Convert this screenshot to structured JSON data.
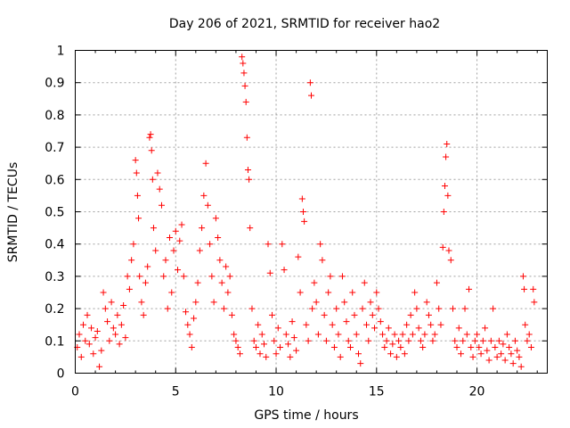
{
  "chart_data": {
    "type": "scatter",
    "title": "Day 206 of 2021, SRMTID for receiver hao2",
    "xlabel": "GPS time / hours",
    "ylabel": "SRMTID / TECUs",
    "xlim": [
      0,
      23.5
    ],
    "ylim": [
      0,
      1
    ],
    "xticks": [
      0,
      5,
      10,
      15,
      20
    ],
    "xtick_labels": [
      "0",
      "5",
      "10",
      "15",
      "20"
    ],
    "yticks": [
      0,
      0.1,
      0.2,
      0.3,
      0.4,
      0.5,
      0.6,
      0.7,
      0.8,
      0.9,
      1
    ],
    "ytick_labels": [
      "0",
      "0.1",
      "0.2",
      "0.3",
      "0.4",
      "0.5",
      "0.6",
      "0.7",
      "0.8",
      "0.9",
      "1"
    ],
    "grid": true,
    "marker": "+",
    "color": "#ff0000",
    "series": [
      {
        "name": "hao2",
        "points": [
          [
            0.1,
            0.08
          ],
          [
            0.2,
            0.12
          ],
          [
            0.3,
            0.05
          ],
          [
            0.4,
            0.15
          ],
          [
            0.5,
            0.1
          ],
          [
            0.6,
            0.18
          ],
          [
            0.7,
            0.09
          ],
          [
            0.8,
            0.14
          ],
          [
            0.9,
            0.06
          ],
          [
            1.0,
            0.11
          ],
          [
            1.1,
            0.13
          ],
          [
            1.2,
            0.02
          ],
          [
            1.3,
            0.07
          ],
          [
            1.4,
            0.25
          ],
          [
            1.5,
            0.2
          ],
          [
            1.6,
            0.16
          ],
          [
            1.7,
            0.1
          ],
          [
            1.8,
            0.22
          ],
          [
            1.9,
            0.14
          ],
          [
            2.0,
            0.12
          ],
          [
            2.1,
            0.18
          ],
          [
            2.2,
            0.09
          ],
          [
            2.3,
            0.15
          ],
          [
            2.4,
            0.21
          ],
          [
            2.5,
            0.11
          ],
          [
            2.6,
            0.3
          ],
          [
            2.7,
            0.26
          ],
          [
            2.8,
            0.35
          ],
          [
            2.9,
            0.4
          ],
          [
            3.0,
            0.66
          ],
          [
            3.05,
            0.62
          ],
          [
            3.1,
            0.55
          ],
          [
            3.15,
            0.48
          ],
          [
            3.2,
            0.3
          ],
          [
            3.3,
            0.22
          ],
          [
            3.4,
            0.18
          ],
          [
            3.5,
            0.28
          ],
          [
            3.6,
            0.33
          ],
          [
            3.7,
            0.73
          ],
          [
            3.75,
            0.74
          ],
          [
            3.8,
            0.69
          ],
          [
            3.85,
            0.6
          ],
          [
            3.9,
            0.45
          ],
          [
            4.0,
            0.38
          ],
          [
            4.1,
            0.62
          ],
          [
            4.2,
            0.57
          ],
          [
            4.3,
            0.52
          ],
          [
            4.4,
            0.3
          ],
          [
            4.5,
            0.35
          ],
          [
            4.6,
            0.2
          ],
          [
            4.7,
            0.42
          ],
          [
            4.8,
            0.25
          ],
          [
            4.9,
            0.38
          ],
          [
            5.0,
            0.44
          ],
          [
            5.1,
            0.32
          ],
          [
            5.2,
            0.41
          ],
          [
            5.3,
            0.46
          ],
          [
            5.4,
            0.3
          ],
          [
            5.5,
            0.19
          ],
          [
            5.6,
            0.15
          ],
          [
            5.7,
            0.12
          ],
          [
            5.8,
            0.08
          ],
          [
            5.9,
            0.17
          ],
          [
            6.0,
            0.22
          ],
          [
            6.1,
            0.28
          ],
          [
            6.2,
            0.38
          ],
          [
            6.3,
            0.45
          ],
          [
            6.4,
            0.55
          ],
          [
            6.5,
            0.65
          ],
          [
            6.6,
            0.52
          ],
          [
            6.7,
            0.4
          ],
          [
            6.8,
            0.3
          ],
          [
            6.9,
            0.22
          ],
          [
            7.0,
            0.48
          ],
          [
            7.1,
            0.42
          ],
          [
            7.2,
            0.35
          ],
          [
            7.3,
            0.28
          ],
          [
            7.4,
            0.2
          ],
          [
            7.5,
            0.33
          ],
          [
            7.6,
            0.25
          ],
          [
            7.7,
            0.3
          ],
          [
            7.8,
            0.18
          ],
          [
            7.9,
            0.12
          ],
          [
            8.0,
            0.1
          ],
          [
            8.1,
            0.08
          ],
          [
            8.2,
            0.06
          ],
          [
            8.3,
            0.98
          ],
          [
            8.35,
            0.96
          ],
          [
            8.4,
            0.93
          ],
          [
            8.45,
            0.89
          ],
          [
            8.5,
            0.84
          ],
          [
            8.55,
            0.73
          ],
          [
            8.6,
            0.63
          ],
          [
            8.65,
            0.6
          ],
          [
            8.7,
            0.45
          ],
          [
            8.8,
            0.2
          ],
          [
            8.9,
            0.1
          ],
          [
            9.0,
            0.08
          ],
          [
            9.1,
            0.15
          ],
          [
            9.2,
            0.06
          ],
          [
            9.3,
            0.12
          ],
          [
            9.4,
            0.09
          ],
          [
            9.5,
            0.05
          ],
          [
            9.6,
            0.4
          ],
          [
            9.7,
            0.31
          ],
          [
            9.8,
            0.18
          ],
          [
            9.9,
            0.1
          ],
          [
            10.0,
            0.06
          ],
          [
            10.1,
            0.14
          ],
          [
            10.2,
            0.08
          ],
          [
            10.3,
            0.4
          ],
          [
            10.4,
            0.32
          ],
          [
            10.5,
            0.12
          ],
          [
            10.6,
            0.09
          ],
          [
            10.7,
            0.05
          ],
          [
            10.8,
            0.16
          ],
          [
            10.9,
            0.11
          ],
          [
            11.0,
            0.07
          ],
          [
            11.1,
            0.36
          ],
          [
            11.2,
            0.25
          ],
          [
            11.3,
            0.54
          ],
          [
            11.35,
            0.5
          ],
          [
            11.4,
            0.47
          ],
          [
            11.5,
            0.15
          ],
          [
            11.6,
            0.1
          ],
          [
            11.7,
            0.9
          ],
          [
            11.75,
            0.86
          ],
          [
            11.8,
            0.2
          ],
          [
            11.9,
            0.28
          ],
          [
            12.0,
            0.22
          ],
          [
            12.1,
            0.12
          ],
          [
            12.2,
            0.4
          ],
          [
            12.3,
            0.35
          ],
          [
            12.4,
            0.18
          ],
          [
            12.5,
            0.1
          ],
          [
            12.6,
            0.25
          ],
          [
            12.7,
            0.3
          ],
          [
            12.8,
            0.15
          ],
          [
            12.9,
            0.08
          ],
          [
            13.0,
            0.2
          ],
          [
            13.1,
            0.12
          ],
          [
            13.2,
            0.05
          ],
          [
            13.3,
            0.3
          ],
          [
            13.4,
            0.22
          ],
          [
            13.5,
            0.16
          ],
          [
            13.6,
            0.1
          ],
          [
            13.7,
            0.08
          ],
          [
            13.8,
            0.25
          ],
          [
            13.9,
            0.18
          ],
          [
            14.0,
            0.12
          ],
          [
            14.1,
            0.06
          ],
          [
            14.2,
            0.03
          ],
          [
            14.3,
            0.2
          ],
          [
            14.4,
            0.28
          ],
          [
            14.5,
            0.15
          ],
          [
            14.6,
            0.1
          ],
          [
            14.7,
            0.22
          ],
          [
            14.8,
            0.18
          ],
          [
            14.9,
            0.14
          ],
          [
            15.0,
            0.25
          ],
          [
            15.1,
            0.2
          ],
          [
            15.2,
            0.16
          ],
          [
            15.3,
            0.12
          ],
          [
            15.4,
            0.08
          ],
          [
            15.5,
            0.1
          ],
          [
            15.6,
            0.14
          ],
          [
            15.7,
            0.06
          ],
          [
            15.8,
            0.09
          ],
          [
            15.9,
            0.12
          ],
          [
            16.0,
            0.05
          ],
          [
            16.1,
            0.1
          ],
          [
            16.2,
            0.08
          ],
          [
            16.3,
            0.12
          ],
          [
            16.4,
            0.06
          ],
          [
            16.5,
            0.15
          ],
          [
            16.6,
            0.1
          ],
          [
            16.7,
            0.18
          ],
          [
            16.8,
            0.12
          ],
          [
            16.9,
            0.25
          ],
          [
            17.0,
            0.2
          ],
          [
            17.1,
            0.14
          ],
          [
            17.2,
            0.1
          ],
          [
            17.3,
            0.08
          ],
          [
            17.4,
            0.12
          ],
          [
            17.5,
            0.22
          ],
          [
            17.6,
            0.18
          ],
          [
            17.7,
            0.15
          ],
          [
            17.8,
            0.1
          ],
          [
            17.9,
            0.12
          ],
          [
            18.0,
            0.28
          ],
          [
            18.1,
            0.2
          ],
          [
            18.2,
            0.15
          ],
          [
            18.3,
            0.39
          ],
          [
            18.35,
            0.5
          ],
          [
            18.4,
            0.58
          ],
          [
            18.45,
            0.67
          ],
          [
            18.5,
            0.71
          ],
          [
            18.55,
            0.55
          ],
          [
            18.6,
            0.38
          ],
          [
            18.7,
            0.35
          ],
          [
            18.8,
            0.2
          ],
          [
            18.9,
            0.1
          ],
          [
            19.0,
            0.08
          ],
          [
            19.1,
            0.14
          ],
          [
            19.2,
            0.06
          ],
          [
            19.3,
            0.1
          ],
          [
            19.4,
            0.2
          ],
          [
            19.5,
            0.12
          ],
          [
            19.6,
            0.26
          ],
          [
            19.7,
            0.08
          ],
          [
            19.8,
            0.05
          ],
          [
            19.9,
            0.1
          ],
          [
            20.0,
            0.12
          ],
          [
            20.1,
            0.08
          ],
          [
            20.2,
            0.06
          ],
          [
            20.3,
            0.1
          ],
          [
            20.4,
            0.14
          ],
          [
            20.5,
            0.07
          ],
          [
            20.6,
            0.04
          ],
          [
            20.7,
            0.1
          ],
          [
            20.8,
            0.2
          ],
          [
            20.9,
            0.08
          ],
          [
            21.0,
            0.05
          ],
          [
            21.1,
            0.1
          ],
          [
            21.2,
            0.06
          ],
          [
            21.3,
            0.09
          ],
          [
            21.4,
            0.04
          ],
          [
            21.5,
            0.12
          ],
          [
            21.6,
            0.08
          ],
          [
            21.7,
            0.06
          ],
          [
            21.8,
            0.03
          ],
          [
            21.9,
            0.1
          ],
          [
            22.0,
            0.07
          ],
          [
            22.1,
            0.05
          ],
          [
            22.2,
            0.02
          ],
          [
            22.3,
            0.3
          ],
          [
            22.35,
            0.26
          ],
          [
            22.4,
            0.15
          ],
          [
            22.5,
            0.1
          ],
          [
            22.6,
            0.12
          ],
          [
            22.7,
            0.08
          ],
          [
            22.8,
            0.26
          ],
          [
            22.85,
            0.22
          ]
        ]
      }
    ]
  }
}
